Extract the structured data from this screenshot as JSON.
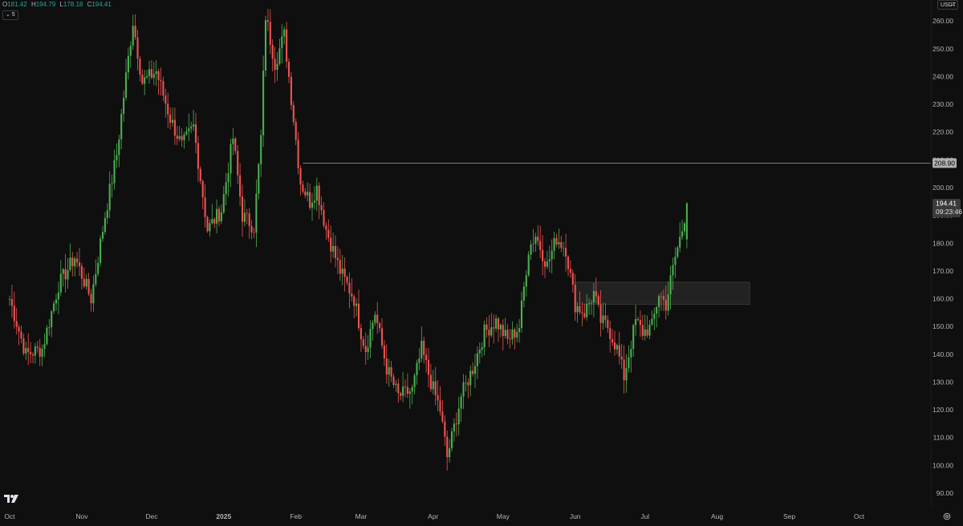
{
  "header": {
    "open_label": "O",
    "open": "181.42",
    "high_label": "H",
    "high": "194.79",
    "low_label": "L",
    "low": "178.18",
    "close_label": "C",
    "close": "194.41",
    "interval_label": "⌄ 5"
  },
  "currency": {
    "label": "USDT",
    "caret": "—"
  },
  "colors": {
    "background": "#0f0f0f",
    "up": "#26a69a",
    "up_candle": "#4caf50",
    "down_candle": "#ef5350",
    "axis_text": "#b2b5be",
    "hline": "#9e9e9e",
    "zone": "#2a2a2a"
  },
  "icons": {
    "logo": "tradingview-logo-icon",
    "settings": "settings-gear-icon"
  },
  "chart_data": {
    "type": "candlestick",
    "title": "",
    "ylim": [
      86,
      266
    ],
    "y_ticks": [
      "90.00",
      "100.00",
      "110.00",
      "120.00",
      "130.00",
      "140.00",
      "150.00",
      "160.00",
      "170.00",
      "180.00",
      "190.00",
      "200.00",
      "210.00",
      "220.00",
      "230.00",
      "240.00",
      "250.00",
      "260.00"
    ],
    "x_ticks": [
      {
        "label": "Oct",
        "date": "2024-10-01",
        "bold": false
      },
      {
        "label": "Nov",
        "date": "2024-11-01",
        "bold": false
      },
      {
        "label": "Dec",
        "date": "2024-12-01",
        "bold": false
      },
      {
        "label": "2025",
        "date": "2025-01-01",
        "bold": true
      },
      {
        "label": "Feb",
        "date": "2025-02-01",
        "bold": false
      },
      {
        "label": "Mar",
        "date": "2025-03-01",
        "bold": false
      },
      {
        "label": "Apr",
        "date": "2025-04-01",
        "bold": false
      },
      {
        "label": "May",
        "date": "2025-05-01",
        "bold": false
      },
      {
        "label": "Jun",
        "date": "2025-06-01",
        "bold": false
      },
      {
        "label": "Jul",
        "date": "2025-07-01",
        "bold": false
      },
      {
        "label": "Aug",
        "date": "2025-08-01",
        "bold": false
      },
      {
        "label": "Sep",
        "date": "2025-09-01",
        "bold": false
      },
      {
        "label": "Oct",
        "date": "2025-10-01",
        "bold": false
      }
    ],
    "start_date": "2024-10-01",
    "key_closes": [
      [
        "2024-10-01",
        160
      ],
      [
        "2024-10-08",
        140
      ],
      [
        "2024-10-15",
        142
      ],
      [
        "2024-10-22",
        165
      ],
      [
        "2024-10-29",
        175
      ],
      [
        "2024-11-05",
        160
      ],
      [
        "2024-11-11",
        190
      ],
      [
        "2024-11-16",
        212
      ],
      [
        "2024-11-20",
        240
      ],
      [
        "2024-11-23",
        260
      ],
      [
        "2024-11-27",
        238
      ],
      [
        "2024-12-03",
        242
      ],
      [
        "2024-12-09",
        225
      ],
      [
        "2024-12-14",
        215
      ],
      [
        "2024-12-19",
        222
      ],
      [
        "2024-12-25",
        185
      ],
      [
        "2024-12-31",
        192
      ],
      [
        "2025-01-05",
        218
      ],
      [
        "2025-01-09",
        190
      ],
      [
        "2025-01-14",
        186
      ],
      [
        "2025-01-17",
        218
      ],
      [
        "2025-01-19",
        262
      ],
      [
        "2025-01-23",
        245
      ],
      [
        "2025-01-27",
        255
      ],
      [
        "2025-01-31",
        225
      ],
      [
        "2025-02-03",
        202
      ],
      [
        "2025-02-07",
        195
      ],
      [
        "2025-02-10",
        200
      ],
      [
        "2025-02-14",
        185
      ],
      [
        "2025-02-20",
        170
      ],
      [
        "2025-02-26",
        160
      ],
      [
        "2025-03-01",
        148
      ],
      [
        "2025-03-03",
        142
      ],
      [
        "2025-03-07",
        155
      ],
      [
        "2025-03-12",
        135
      ],
      [
        "2025-03-17",
        125
      ],
      [
        "2025-03-23",
        127
      ],
      [
        "2025-03-27",
        142
      ],
      [
        "2025-03-31",
        130
      ],
      [
        "2025-04-04",
        120
      ],
      [
        "2025-04-07",
        103
      ],
      [
        "2025-04-09",
        110
      ],
      [
        "2025-04-13",
        125
      ],
      [
        "2025-04-18",
        135
      ],
      [
        "2025-04-23",
        148
      ],
      [
        "2025-04-28",
        152
      ],
      [
        "2025-05-03",
        145
      ],
      [
        "2025-05-08",
        150
      ],
      [
        "2025-05-12",
        178
      ],
      [
        "2025-05-15",
        183
      ],
      [
        "2025-05-20",
        172
      ],
      [
        "2025-05-24",
        182
      ],
      [
        "2025-05-28",
        178
      ],
      [
        "2025-06-01",
        158
      ],
      [
        "2025-06-05",
        155
      ],
      [
        "2025-06-09",
        162
      ],
      [
        "2025-06-12",
        152
      ],
      [
        "2025-06-15",
        150
      ],
      [
        "2025-06-19",
        142
      ],
      [
        "2025-06-22",
        132
      ],
      [
        "2025-06-24",
        140
      ],
      [
        "2025-06-27",
        152
      ],
      [
        "2025-06-30",
        148
      ],
      [
        "2025-07-04",
        150
      ],
      [
        "2025-07-07",
        162
      ],
      [
        "2025-07-10",
        158
      ],
      [
        "2025-07-14",
        175
      ],
      [
        "2025-07-17",
        185
      ],
      [
        "2025-07-19",
        194.41
      ]
    ],
    "last_candle": {
      "date": "2025-07-19",
      "open": 181.42,
      "high": 194.79,
      "low": 178.18,
      "close": 194.41
    },
    "horizontal_line": {
      "from_date": "2025-02-04",
      "price": 208.9,
      "label": "208.90"
    },
    "zone": {
      "from_date": "2025-06-01",
      "to_date": "2025-08-15",
      "low": 158,
      "high": 166
    },
    "last_price_label": "194.41",
    "countdown_label": "09:23:46"
  }
}
